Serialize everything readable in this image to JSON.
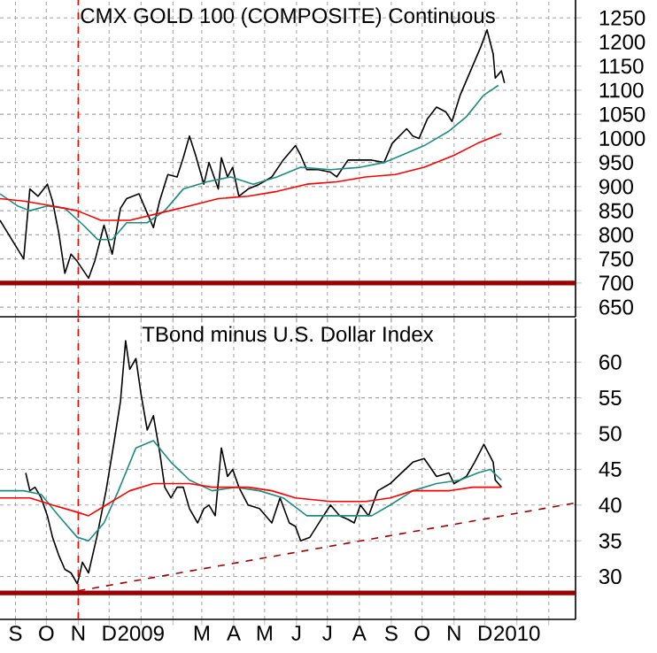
{
  "chart_data": [
    {
      "type": "line",
      "title": "CMX GOLD 100 (COMPOSITE) Continuous",
      "grid": true,
      "tick_labels": "y",
      "xlim": [
        "2008-08-17",
        "2010-02-27"
      ],
      "ylim": [
        630,
        1287
      ],
      "yticks": [
        650,
        700,
        750,
        800,
        850,
        900,
        950,
        1000,
        1050,
        1100,
        1150,
        1200,
        1250
      ],
      "xticks": [
        {
          "value": "2008-09-01",
          "label": null
        },
        {
          "value": "2008-10-01",
          "label": null
        },
        {
          "value": "2008-11-01",
          "label": null
        },
        {
          "value": "2008-12-01",
          "label": null
        },
        {
          "value": "2009-01-01",
          "label": null
        },
        {
          "value": "2009-02-01",
          "label": null
        },
        {
          "value": "2009-03-01",
          "label": null
        },
        {
          "value": "2009-04-01",
          "label": null
        },
        {
          "value": "2009-05-01",
          "label": null
        },
        {
          "value": "2009-06-01",
          "label": null
        },
        {
          "value": "2009-07-01",
          "label": null
        },
        {
          "value": "2009-08-01",
          "label": null
        },
        {
          "value": "2009-09-01",
          "label": null
        },
        {
          "value": "2009-10-01",
          "label": null
        },
        {
          "value": "2009-11-01",
          "label": null
        },
        {
          "value": "2009-12-01",
          "label": null
        },
        {
          "value": "2010-01-01",
          "label": null
        },
        {
          "value": "2010-02-01",
          "label": null
        }
      ],
      "ref_lines": [
        {
          "axis": "x",
          "value": "2008-11-01",
          "color": "#ff0000",
          "line_style": "dashed"
        },
        {
          "axis": "y",
          "value": 700,
          "color": "#990000"
        }
      ],
      "series": [
        {
          "color": "#000000",
          "x": [
            "2008-08-17",
            "2008-09-09",
            "2008-09-15",
            "2008-09-23",
            "2008-10-02",
            "2008-10-07",
            "2008-10-13",
            "2008-10-19",
            "2008-10-25",
            "2008-10-31",
            "2008-11-11",
            "2008-11-17",
            "2008-11-26",
            "2008-12-04",
            "2008-12-12",
            "2008-12-18",
            "2008-12-30",
            "2009-01-07",
            "2009-01-13",
            "2009-01-19",
            "2009-01-27",
            "2009-02-05",
            "2009-02-11",
            "2009-02-17",
            "2009-02-23",
            "2009-03-03",
            "2009-03-08",
            "2009-03-17",
            "2009-03-20",
            "2009-03-26",
            "2009-03-31",
            "2009-04-06",
            "2009-04-15",
            "2009-04-26",
            "2009-05-08",
            "2009-05-19",
            "2009-05-31",
            "2009-06-05",
            "2009-06-11",
            "2009-06-22",
            "2009-07-04",
            "2009-07-10",
            "2009-07-21",
            "2009-08-02",
            "2009-08-13",
            "2009-08-25",
            "2009-09-02",
            "2009-09-16",
            "2009-09-22",
            "2009-09-28",
            "2009-10-06",
            "2009-10-15",
            "2009-10-24",
            "2009-10-30",
            "2009-11-07",
            "2009-11-19",
            "2009-11-27",
            "2009-12-03",
            "2009-12-09",
            "2009-12-11",
            "2009-12-17",
            "2009-12-20"
          ],
          "values": [
            830,
            750,
            895,
            880,
            905,
            870,
            805,
            720,
            760,
            745,
            710,
            745,
            820,
            760,
            855,
            875,
            885,
            845,
            815,
            870,
            925,
            920,
            960,
            1005,
            965,
            905,
            950,
            895,
            960,
            920,
            940,
            880,
            895,
            905,
            920,
            955,
            985,
            965,
            935,
            935,
            930,
            920,
            955,
            955,
            955,
            950,
            990,
            1020,
            1005,
            1000,
            1040,
            1065,
            1055,
            1035,
            1090,
            1150,
            1190,
            1225,
            1175,
            1125,
            1140,
            1115
          ]
        },
        {
          "color": "#1e8c7e",
          "x": [
            "2008-08-17",
            "2008-09-03",
            "2008-09-15",
            "2008-10-02",
            "2008-10-19",
            "2008-11-06",
            "2008-11-20",
            "2008-12-04",
            "2008-12-18",
            "2009-01-07",
            "2009-01-24",
            "2009-02-11",
            "2009-03-06",
            "2009-03-29",
            "2009-04-20",
            "2009-05-13",
            "2009-06-05",
            "2009-07-04",
            "2009-08-02",
            "2009-08-25",
            "2009-09-11",
            "2009-10-03",
            "2009-10-27",
            "2009-11-13",
            "2009-11-30",
            "2009-12-14"
          ],
          "values": [
            885,
            860,
            850,
            860,
            855,
            820,
            790,
            790,
            825,
            825,
            850,
            895,
            910,
            920,
            905,
            920,
            940,
            935,
            940,
            950,
            965,
            985,
            1015,
            1045,
            1090,
            1110
          ]
        },
        {
          "color": "#ff0000",
          "x": [
            "2008-08-17",
            "2008-09-09",
            "2008-10-07",
            "2008-10-31",
            "2008-11-23",
            "2008-12-21",
            "2009-01-19",
            "2009-02-17",
            "2009-03-17",
            "2009-04-15",
            "2009-05-13",
            "2009-06-11",
            "2009-07-10",
            "2009-08-07",
            "2009-09-05",
            "2009-10-03",
            "2009-11-01",
            "2009-11-24",
            "2009-12-17"
          ],
          "values": [
            875,
            870,
            860,
            850,
            830,
            830,
            845,
            860,
            875,
            880,
            890,
            905,
            910,
            920,
            925,
            940,
            965,
            990,
            1010
          ]
        }
      ]
    },
    {
      "type": "line",
      "title": "TBond minus U.S. Dollar Index",
      "grid": true,
      "xlim": [
        "2008-08-17",
        "2010-02-27"
      ],
      "ylim": [
        24,
        66.1
      ],
      "yticks": [
        30,
        35,
        40,
        45,
        50,
        55,
        60
      ],
      "xticks": [
        {
          "value": "2008-09-01",
          "label": "S"
        },
        {
          "value": "2008-10-01",
          "label": "O"
        },
        {
          "value": "2008-11-01",
          "label": "N"
        },
        {
          "value": "2008-12-01",
          "label": "D"
        },
        {
          "value": "2009-01-01",
          "label": "2009"
        },
        {
          "value": "2009-02-01",
          "label": null
        },
        {
          "value": "2009-03-01",
          "label": "M"
        },
        {
          "value": "2009-04-01",
          "label": "A"
        },
        {
          "value": "2009-05-01",
          "label": "M"
        },
        {
          "value": "2009-06-01",
          "label": "J"
        },
        {
          "value": "2009-07-01",
          "label": "J"
        },
        {
          "value": "2009-08-01",
          "label": "A"
        },
        {
          "value": "2009-09-01",
          "label": "S"
        },
        {
          "value": "2009-10-01",
          "label": "O"
        },
        {
          "value": "2009-11-01",
          "label": "N"
        },
        {
          "value": "2009-12-01",
          "label": "D"
        },
        {
          "value": "2010-01-01",
          "label": "2010"
        },
        {
          "value": "2010-02-01",
          "label": null
        }
      ],
      "ref_lines": [
        {
          "axis": "x",
          "value": "2008-11-01",
          "color": "#ff0000",
          "line_style": "dashed"
        },
        {
          "axis": "y",
          "value": 27.7,
          "color": "#990000"
        }
      ],
      "series": [
        {
          "color": "#000000",
          "x": [
            "2008-09-11",
            "2008-09-15",
            "2008-09-20",
            "2008-09-26",
            "2008-10-02",
            "2008-10-07",
            "2008-10-13",
            "2008-10-19",
            "2008-10-25",
            "2008-10-31",
            "2008-11-02",
            "2008-11-05",
            "2008-11-11",
            "2008-11-19",
            "2008-11-28",
            "2008-12-06",
            "2008-12-12",
            "2008-12-17",
            "2008-12-21",
            "2008-12-27",
            "2009-01-01",
            "2009-01-07",
            "2009-01-13",
            "2009-01-19",
            "2009-01-24",
            "2009-01-30",
            "2009-02-05",
            "2009-02-11",
            "2009-02-17",
            "2009-02-25",
            "2009-03-03",
            "2009-03-08",
            "2009-03-14",
            "2009-03-20",
            "2009-03-26",
            "2009-03-31",
            "2009-04-06",
            "2009-04-15",
            "2009-04-26",
            "2009-05-08",
            "2009-05-16",
            "2009-05-25",
            "2009-05-31",
            "2009-06-05",
            "2009-06-14",
            "2009-06-25",
            "2009-07-04",
            "2009-07-13",
            "2009-07-21",
            "2009-07-27",
            "2009-08-02",
            "2009-08-10",
            "2009-08-19",
            "2009-08-31",
            "2009-09-11",
            "2009-09-22",
            "2009-10-03",
            "2009-10-15",
            "2009-10-27",
            "2009-11-01",
            "2009-11-13",
            "2009-11-21",
            "2009-11-30",
            "2009-12-09",
            "2009-12-11",
            "2009-12-17"
          ],
          "values": [
            44.5,
            42,
            42.5,
            41,
            38.5,
            35.5,
            33,
            31,
            30.5,
            29,
            30,
            32,
            30.5,
            35.5,
            42,
            49,
            54.5,
            63,
            59,
            60.5,
            55.5,
            50.5,
            52.5,
            47.5,
            42.5,
            41,
            42.5,
            42.5,
            39.5,
            37.5,
            39.5,
            40,
            38.5,
            48,
            44,
            45,
            42.5,
            40,
            39.5,
            37.5,
            41,
            37.5,
            37,
            35,
            35.5,
            38,
            40,
            38.5,
            38,
            37.5,
            40,
            38.5,
            42,
            43,
            44.5,
            46,
            46.5,
            44,
            44.5,
            43,
            44,
            46,
            48.5,
            46,
            43.5,
            42.5
          ]
        },
        {
          "color": "#1e8c7e",
          "x": [
            "2008-08-17",
            "2008-09-09",
            "2008-09-26",
            "2008-10-13",
            "2008-10-31",
            "2008-11-11",
            "2008-11-26",
            "2008-12-10",
            "2008-12-27",
            "2009-01-13",
            "2009-01-30",
            "2009-02-17",
            "2009-03-11",
            "2009-04-03",
            "2009-04-26",
            "2009-05-19",
            "2009-06-11",
            "2009-07-04",
            "2009-07-27",
            "2009-08-13",
            "2009-08-31",
            "2009-09-22",
            "2009-10-15",
            "2009-11-07",
            "2009-11-24",
            "2009-12-06",
            "2009-12-17"
          ],
          "values": [
            42,
            42,
            41.5,
            38.5,
            35.5,
            35,
            37.5,
            42,
            48,
            49,
            46,
            43.5,
            42,
            42.5,
            42,
            41,
            38.5,
            38.5,
            38.5,
            38.5,
            40,
            42,
            43,
            43.5,
            44.5,
            45,
            43.5
          ]
        },
        {
          "color": "#ff0000",
          "x": [
            "2008-08-17",
            "2008-09-15",
            "2008-10-07",
            "2008-10-31",
            "2008-11-11",
            "2008-11-28",
            "2008-12-21",
            "2009-01-13",
            "2009-02-17",
            "2009-03-11",
            "2009-04-15",
            "2009-05-08",
            "2009-05-31",
            "2009-07-04",
            "2009-08-07",
            "2009-08-31",
            "2009-09-22",
            "2009-10-27",
            "2009-11-19",
            "2009-12-17"
          ],
          "values": [
            41,
            41,
            40,
            39,
            38.5,
            40,
            42,
            43,
            43,
            42.5,
            42.5,
            42,
            41,
            40.5,
            40.5,
            41,
            42,
            42,
            42.5,
            42.5
          ]
        },
        {
          "color": "#990000",
          "line_style": "dashed",
          "x": [
            "2008-11-01",
            "2010-02-27"
          ],
          "values": [
            28,
            40.3
          ]
        }
      ]
    }
  ]
}
